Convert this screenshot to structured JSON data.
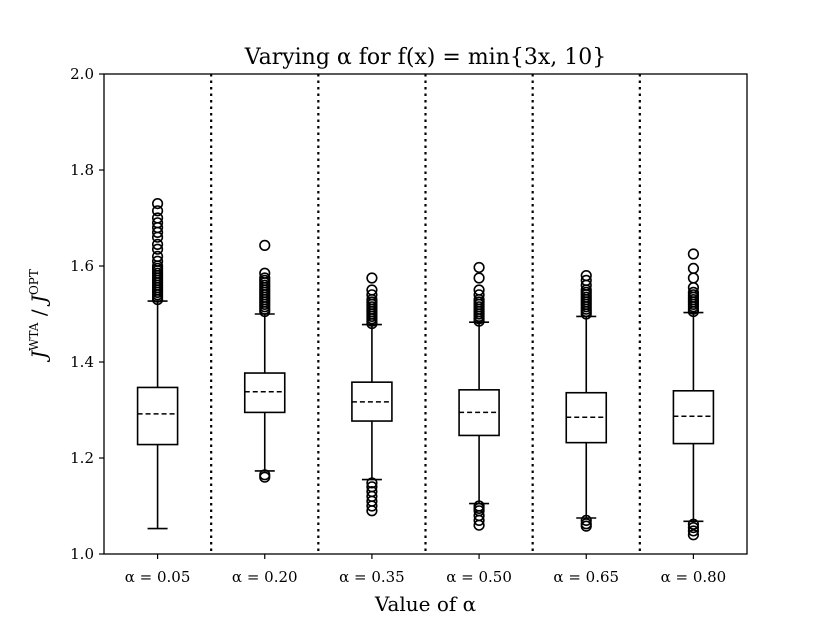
{
  "chart_data": {
    "type": "boxplot",
    "title": "Varying α for f(x) = min{3x, 10}",
    "xlabel": "Value of α",
    "ylabel": "J^WTA / J^OPT",
    "ylabel_parts": {
      "num": "J",
      "num_sup": "WTA",
      "sep": " / ",
      "den": "J",
      "den_sup": "OPT"
    },
    "ylim": [
      1.0,
      2.0
    ],
    "yticks": [
      "1.0",
      "1.2",
      "1.4",
      "1.6",
      "1.8",
      "2.0"
    ],
    "ytick_values": [
      1.0,
      1.2,
      1.4,
      1.6,
      1.8,
      2.0
    ],
    "categories": [
      "α = 0.05",
      "α = 0.20",
      "α = 0.35",
      "α = 0.50",
      "α = 0.65",
      "α = 0.80"
    ],
    "grid": false,
    "separators": "dotted vertical lines between groups",
    "median_style": "dashed",
    "boxes": [
      {
        "q1": 1.228,
        "median": 1.292,
        "q3": 1.347,
        "whisker_low": 1.053,
        "whisker_high": 1.527,
        "outliers_high": [
          1.53,
          1.535,
          1.54,
          1.545,
          1.55,
          1.555,
          1.56,
          1.565,
          1.57,
          1.575,
          1.58,
          1.585,
          1.59,
          1.595,
          1.6,
          1.61,
          1.62,
          1.635,
          1.645,
          1.66,
          1.67,
          1.68,
          1.69,
          1.7,
          1.715,
          1.73
        ],
        "outliers_low": []
      },
      {
        "q1": 1.295,
        "median": 1.338,
        "q3": 1.377,
        "whisker_low": 1.173,
        "whisker_high": 1.5,
        "outliers_high": [
          1.505,
          1.51,
          1.515,
          1.52,
          1.525,
          1.53,
          1.535,
          1.54,
          1.545,
          1.55,
          1.555,
          1.56,
          1.565,
          1.57,
          1.575,
          1.585,
          1.643
        ],
        "outliers_low": [
          1.165,
          1.16
        ]
      },
      {
        "q1": 1.277,
        "median": 1.317,
        "q3": 1.358,
        "whisker_low": 1.155,
        "whisker_high": 1.478,
        "outliers_high": [
          1.48,
          1.485,
          1.49,
          1.495,
          1.5,
          1.505,
          1.51,
          1.515,
          1.52,
          1.525,
          1.53,
          1.54,
          1.55,
          1.575
        ],
        "outliers_low": [
          1.148,
          1.14,
          1.13,
          1.12,
          1.11,
          1.1,
          1.09
        ]
      },
      {
        "q1": 1.247,
        "median": 1.295,
        "q3": 1.342,
        "whisker_low": 1.105,
        "whisker_high": 1.483,
        "outliers_high": [
          1.485,
          1.49,
          1.495,
          1.5,
          1.505,
          1.51,
          1.515,
          1.52,
          1.525,
          1.53,
          1.54,
          1.55,
          1.575,
          1.597
        ],
        "outliers_low": [
          1.1,
          1.095,
          1.09,
          1.08,
          1.07,
          1.06
        ]
      },
      {
        "q1": 1.232,
        "median": 1.285,
        "q3": 1.336,
        "whisker_low": 1.075,
        "whisker_high": 1.495,
        "outliers_high": [
          1.5,
          1.505,
          1.51,
          1.515,
          1.52,
          1.525,
          1.53,
          1.535,
          1.54,
          1.545,
          1.55,
          1.56,
          1.57,
          1.58
        ],
        "outliers_low": [
          1.07,
          1.063,
          1.058
        ]
      },
      {
        "q1": 1.23,
        "median": 1.287,
        "q3": 1.34,
        "whisker_low": 1.068,
        "whisker_high": 1.503,
        "outliers_high": [
          1.505,
          1.51,
          1.515,
          1.52,
          1.525,
          1.53,
          1.535,
          1.54,
          1.545,
          1.555,
          1.575,
          1.595,
          1.625
        ],
        "outliers_low": [
          1.062,
          1.055,
          1.048,
          1.04
        ]
      }
    ]
  }
}
